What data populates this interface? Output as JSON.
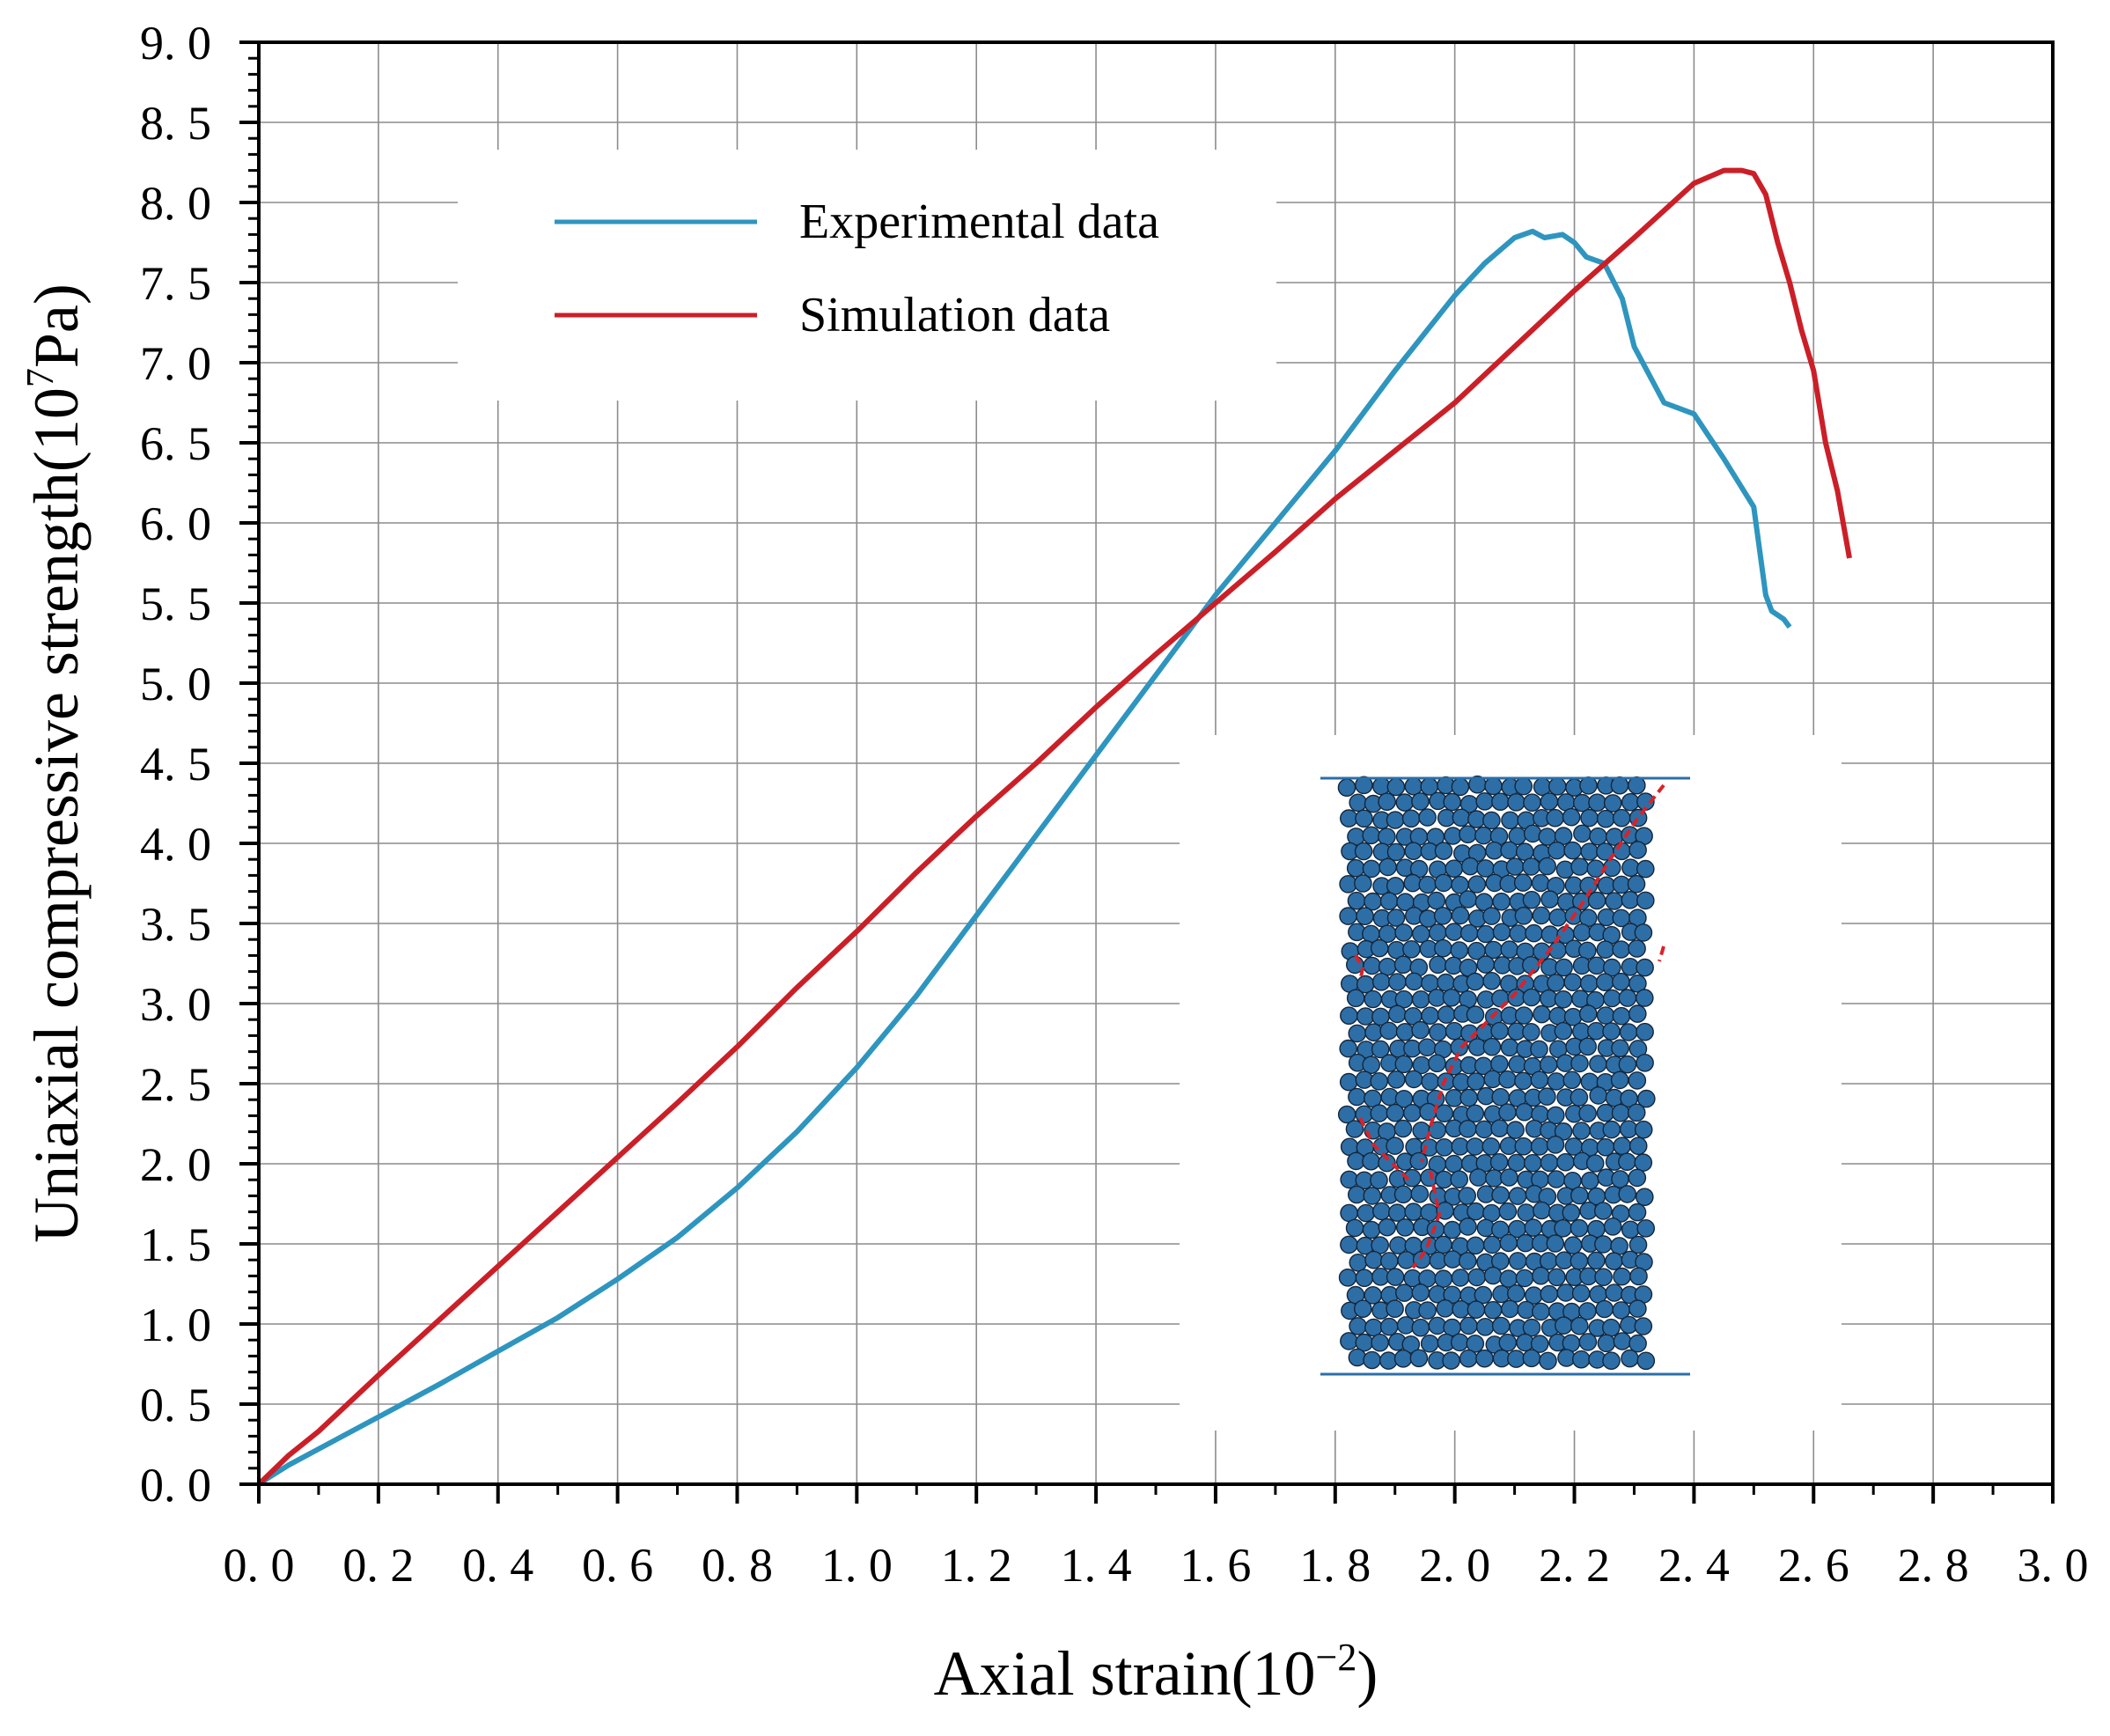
{
  "chart_data": {
    "type": "line",
    "xlabel": "Axial strain(10",
    "xlabel_sup": "−2",
    "xlabel_end": ")",
    "ylabel": "Uniaxial compressive strength(10",
    "ylabel_sup": "7",
    "ylabel_end": "Pa)",
    "xlim": [
      0.0,
      3.0
    ],
    "ylim": [
      0.0,
      9.0
    ],
    "xticks": [
      "0. 0",
      "0. 2",
      "0. 4",
      "0. 6",
      "0. 8",
      "1. 0",
      "1. 2",
      "1. 4",
      "1. 6",
      "1. 8",
      "2. 0",
      "2. 2",
      "2. 4",
      "2. 6",
      "2. 8",
      "3. 0"
    ],
    "yticks": [
      "0. 0",
      "0. 5",
      "1. 0",
      "1. 5",
      "2. 0",
      "2. 5",
      "3. 0",
      "3. 5",
      "4. 0",
      "4. 5",
      "5. 0",
      "5. 5",
      "6. 0",
      "6. 5",
      "7. 0",
      "7. 5",
      "8. 0",
      "8. 5",
      "9. 0"
    ],
    "grid": true,
    "legend_position": "upper-left",
    "series": [
      {
        "name": "Experimental data",
        "color": "#2e95bf",
        "x": [
          0.0,
          0.02,
          0.05,
          0.1,
          0.2,
          0.3,
          0.4,
          0.5,
          0.6,
          0.7,
          0.8,
          0.9,
          1.0,
          1.1,
          1.2,
          1.3,
          1.4,
          1.5,
          1.6,
          1.7,
          1.8,
          1.9,
          2.0,
          2.05,
          2.1,
          2.13,
          2.15,
          2.18,
          2.2,
          2.22,
          2.25,
          2.28,
          2.3,
          2.35,
          2.4,
          2.45,
          2.5,
          2.52,
          2.53,
          2.55,
          2.56
        ],
        "y": [
          0.0,
          0.05,
          0.12,
          0.22,
          0.42,
          0.62,
          0.83,
          1.04,
          1.28,
          1.54,
          1.85,
          2.2,
          2.6,
          3.05,
          3.55,
          4.05,
          4.55,
          5.05,
          5.55,
          6.0,
          6.45,
          6.95,
          7.42,
          7.62,
          7.78,
          7.82,
          7.78,
          7.8,
          7.75,
          7.66,
          7.62,
          7.4,
          7.1,
          6.75,
          6.68,
          6.4,
          6.1,
          5.55,
          5.45,
          5.4,
          5.35
        ]
      },
      {
        "name": "Simulation data",
        "color": "#cb1f28",
        "x": [
          0.0,
          0.05,
          0.1,
          0.2,
          0.3,
          0.4,
          0.5,
          0.6,
          0.7,
          0.8,
          0.9,
          1.0,
          1.1,
          1.2,
          1.3,
          1.4,
          1.5,
          1.6,
          1.7,
          1.8,
          1.9,
          2.0,
          2.1,
          2.2,
          2.3,
          2.4,
          2.45,
          2.48,
          2.5,
          2.52,
          2.54,
          2.56,
          2.58,
          2.6,
          2.62,
          2.64,
          2.66
        ],
        "y": [
          0.0,
          0.18,
          0.33,
          0.68,
          1.02,
          1.36,
          1.7,
          2.04,
          2.38,
          2.73,
          3.1,
          3.45,
          3.82,
          4.17,
          4.5,
          4.85,
          5.18,
          5.5,
          5.82,
          6.15,
          6.45,
          6.75,
          7.1,
          7.45,
          7.78,
          8.12,
          8.2,
          8.2,
          8.18,
          8.05,
          7.75,
          7.5,
          7.2,
          6.95,
          6.5,
          6.2,
          5.78
        ]
      }
    ],
    "inset": "Particle assembly of the specimen after failure with cracks"
  }
}
